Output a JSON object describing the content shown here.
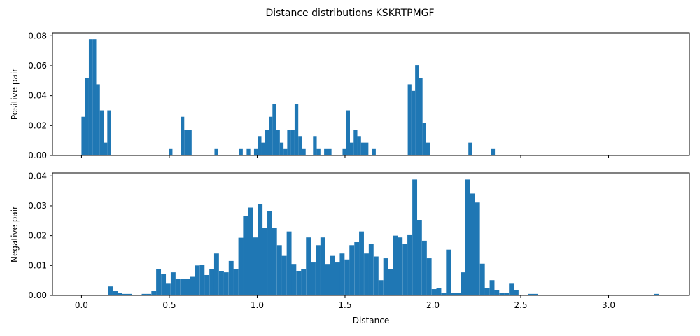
{
  "title": "Distance distributions KSKRTPMGF",
  "colors": {
    "bar": "#1f77b4",
    "axis": "#000000",
    "background": "#ffffff"
  },
  "chart_data": [
    {
      "type": "bar",
      "panel": "top",
      "xlabel": "",
      "ylabel": "Positive pair",
      "xlim": [
        -0.165,
        3.46
      ],
      "ylim": [
        0,
        0.082
      ],
      "xticks": [
        0.0,
        0.5,
        1.0,
        1.5,
        2.0,
        2.5,
        3.0
      ],
      "xtick_labels": [
        "",
        "",
        "",
        "",
        "",
        "",
        ""
      ],
      "yticks": [
        0.0,
        0.02,
        0.04,
        0.06,
        0.08
      ],
      "ytick_labels": [
        "0.00",
        "0.02",
        "0.04",
        "0.06",
        "0.08"
      ],
      "bin_width": 0.021,
      "bins": [
        [
          0.0,
          0.0259
        ],
        [
          0.021,
          0.0518
        ],
        [
          0.042,
          0.0777
        ],
        [
          0.063,
          0.0777
        ],
        [
          0.084,
          0.0476
        ],
        [
          0.105,
          0.0302
        ],
        [
          0.126,
          0.0086
        ],
        [
          0.147,
          0.0302
        ],
        [
          0.497,
          0.0043
        ],
        [
          0.564,
          0.0259
        ],
        [
          0.585,
          0.0173
        ],
        [
          0.606,
          0.0173
        ],
        [
          0.757,
          0.0043
        ],
        [
          0.897,
          0.0043
        ],
        [
          0.94,
          0.0043
        ],
        [
          0.982,
          0.0043
        ],
        [
          1.003,
          0.013
        ],
        [
          1.024,
          0.0086
        ],
        [
          1.045,
          0.0173
        ],
        [
          1.066,
          0.0259
        ],
        [
          1.087,
          0.0346
        ],
        [
          1.108,
          0.0173
        ],
        [
          1.129,
          0.0086
        ],
        [
          1.15,
          0.0043
        ],
        [
          1.171,
          0.0173
        ],
        [
          1.192,
          0.0173
        ],
        [
          1.213,
          0.0346
        ],
        [
          1.234,
          0.013
        ],
        [
          1.255,
          0.0043
        ],
        [
          1.318,
          0.013
        ],
        [
          1.339,
          0.0043
        ],
        [
          1.381,
          0.0043
        ],
        [
          1.402,
          0.0043
        ],
        [
          1.486,
          0.0043
        ],
        [
          1.507,
          0.0302
        ],
        [
          1.528,
          0.0086
        ],
        [
          1.549,
          0.0173
        ],
        [
          1.57,
          0.013
        ],
        [
          1.591,
          0.0086
        ],
        [
          1.612,
          0.0086
        ],
        [
          1.654,
          0.0043
        ],
        [
          1.857,
          0.0476
        ],
        [
          1.878,
          0.0432
        ],
        [
          1.899,
          0.0604
        ],
        [
          1.92,
          0.0518
        ],
        [
          1.941,
          0.0216
        ],
        [
          1.962,
          0.0086
        ],
        [
          2.202,
          0.0086
        ],
        [
          2.332,
          0.0043
        ]
      ]
    },
    {
      "type": "bar",
      "panel": "bottom",
      "xlabel": "Distance",
      "ylabel": "Negative pair",
      "xlim": [
        -0.165,
        3.46
      ],
      "ylim": [
        0,
        0.041
      ],
      "xticks": [
        0.0,
        0.5,
        1.0,
        1.5,
        2.0,
        2.5,
        3.0
      ],
      "xtick_labels": [
        "0.0",
        "0.5",
        "1.0",
        "1.5",
        "2.0",
        "2.5",
        "3.0"
      ],
      "yticks": [
        0.0,
        0.01,
        0.02,
        0.03,
        0.04
      ],
      "ytick_labels": [
        "0.00",
        "0.01",
        "0.02",
        "0.03",
        "0.04"
      ],
      "bin_width": 0.0275,
      "bins": [
        [
          0.15,
          0.003
        ],
        [
          0.178,
          0.0014
        ],
        [
          0.205,
          0.0008
        ],
        [
          0.233,
          0.0005
        ],
        [
          0.26,
          0.0005
        ],
        [
          0.343,
          0.0005
        ],
        [
          0.37,
          0.0005
        ],
        [
          0.398,
          0.0014
        ],
        [
          0.425,
          0.0089
        ],
        [
          0.453,
          0.0072
        ],
        [
          0.48,
          0.0039
        ],
        [
          0.508,
          0.0077
        ],
        [
          0.535,
          0.0056
        ],
        [
          0.563,
          0.0056
        ],
        [
          0.59,
          0.0056
        ],
        [
          0.618,
          0.0062
        ],
        [
          0.645,
          0.01
        ],
        [
          0.673,
          0.0103
        ],
        [
          0.7,
          0.0068
        ],
        [
          0.728,
          0.0089
        ],
        [
          0.755,
          0.014
        ],
        [
          0.783,
          0.0082
        ],
        [
          0.81,
          0.0077
        ],
        [
          0.838,
          0.0115
        ],
        [
          0.865,
          0.0089
        ],
        [
          0.893,
          0.0193
        ],
        [
          0.92,
          0.0267
        ],
        [
          0.948,
          0.0294
        ],
        [
          0.975,
          0.0194
        ],
        [
          1.003,
          0.0305
        ],
        [
          1.03,
          0.0227
        ],
        [
          1.058,
          0.0282
        ],
        [
          1.085,
          0.0227
        ],
        [
          1.113,
          0.0168
        ],
        [
          1.14,
          0.0132
        ],
        [
          1.168,
          0.0214
        ],
        [
          1.195,
          0.0105
        ],
        [
          1.223,
          0.0082
        ],
        [
          1.25,
          0.0089
        ],
        [
          1.278,
          0.0194
        ],
        [
          1.305,
          0.011
        ],
        [
          1.333,
          0.0168
        ],
        [
          1.36,
          0.0194
        ],
        [
          1.388,
          0.0105
        ],
        [
          1.415,
          0.0132
        ],
        [
          1.443,
          0.011
        ],
        [
          1.47,
          0.014
        ],
        [
          1.498,
          0.012
        ],
        [
          1.525,
          0.0168
        ],
        [
          1.553,
          0.0178
        ],
        [
          1.58,
          0.0214
        ],
        [
          1.608,
          0.014
        ],
        [
          1.635,
          0.0171
        ],
        [
          1.663,
          0.013
        ],
        [
          1.69,
          0.0051
        ],
        [
          1.718,
          0.0124
        ],
        [
          1.745,
          0.0089
        ],
        [
          1.773,
          0.02
        ],
        [
          1.8,
          0.0194
        ],
        [
          1.828,
          0.0172
        ],
        [
          1.855,
          0.0204
        ],
        [
          1.883,
          0.0388
        ],
        [
          1.91,
          0.0253
        ],
        [
          1.938,
          0.0183
        ],
        [
          1.965,
          0.0124
        ],
        [
          1.993,
          0.0021
        ],
        [
          2.02,
          0.0025
        ],
        [
          2.048,
          0.0008
        ],
        [
          2.075,
          0.0153
        ],
        [
          2.103,
          0.0008
        ],
        [
          2.13,
          0.0008
        ],
        [
          2.158,
          0.0077
        ],
        [
          2.185,
          0.0388
        ],
        [
          2.213,
          0.0341
        ],
        [
          2.24,
          0.0311
        ],
        [
          2.268,
          0.0106
        ],
        [
          2.295,
          0.0025
        ],
        [
          2.323,
          0.0051
        ],
        [
          2.35,
          0.0018
        ],
        [
          2.378,
          0.0009
        ],
        [
          2.405,
          0.0008
        ],
        [
          2.433,
          0.0039
        ],
        [
          2.46,
          0.0018
        ],
        [
          2.543,
          0.0005
        ],
        [
          2.57,
          0.0005
        ],
        [
          3.26,
          0.0005
        ]
      ]
    }
  ]
}
